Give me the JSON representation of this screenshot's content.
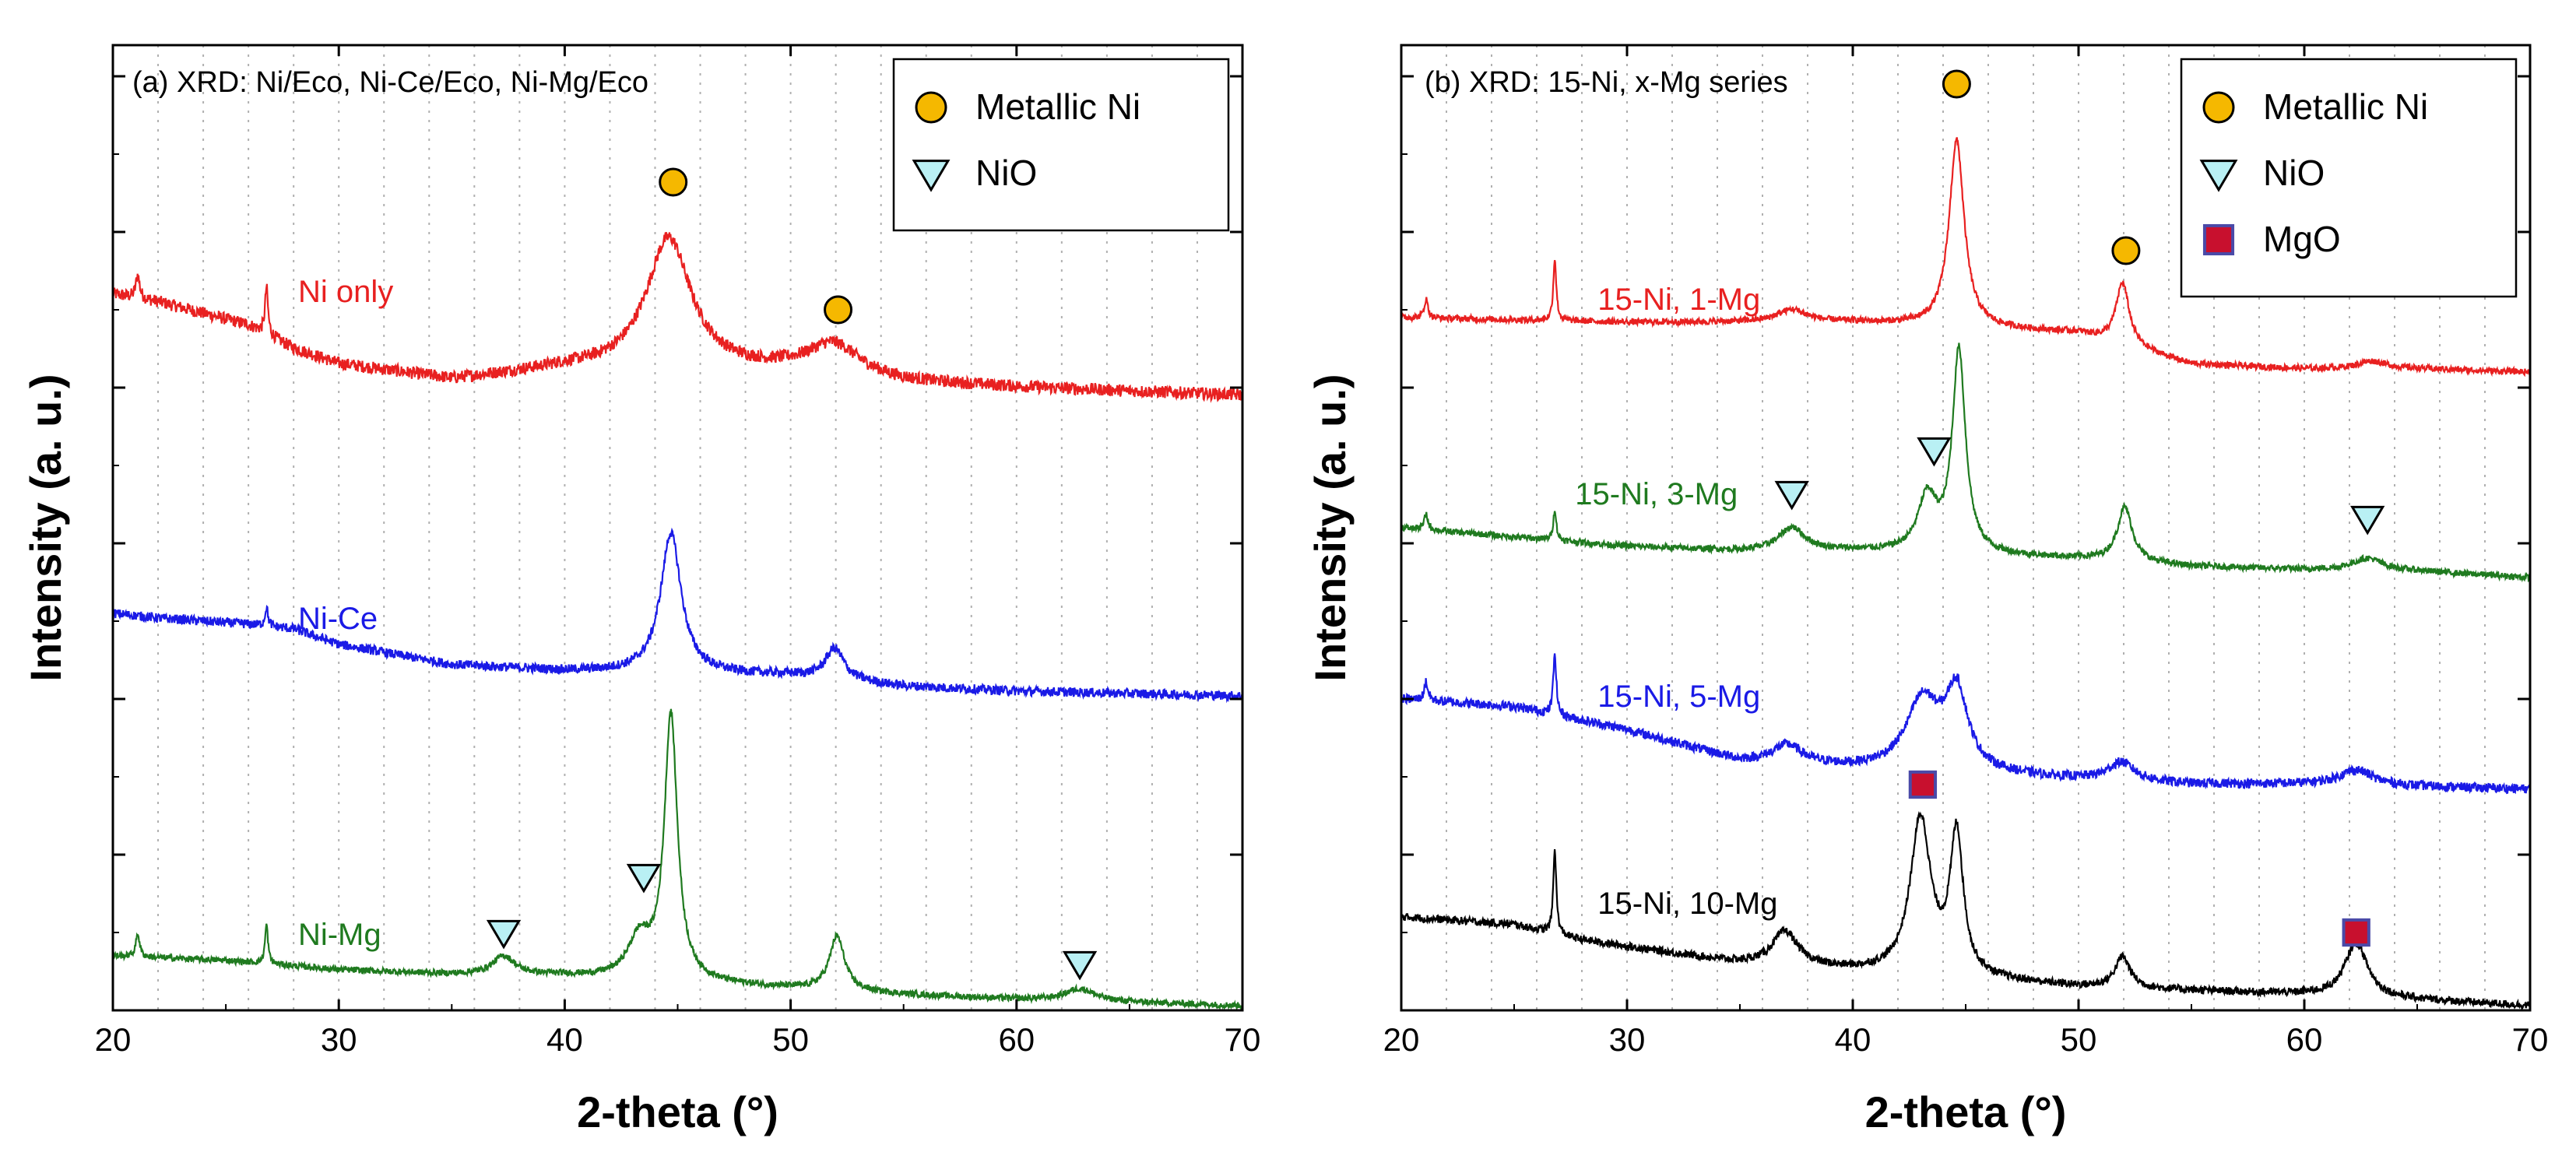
{
  "chart_data": [
    {
      "type": "line",
      "title": "(a) XRD: Ni/Eco, Ni-Ce/Eco, Ni-Mg/Eco",
      "xlabel": "2-theta (°)",
      "ylabel": "Intensity (a. u.)",
      "xlim": [
        20,
        70
      ],
      "xticks": [
        20,
        30,
        40,
        50,
        60,
        70
      ],
      "xtick_labels": [
        "20",
        "30",
        "40",
        "50",
        "60",
        "70"
      ],
      "ylim": [
        0,
        6.2
      ],
      "yticks": [
        1,
        2,
        3,
        4,
        5,
        6
      ],
      "grid": "vertical dotted every 2°",
      "legend_position": "top-right",
      "legend": [
        {
          "label": "Metallic Ni",
          "marker": "circle",
          "color": "#f5b800"
        },
        {
          "label": "NiO",
          "marker": "triangle-down",
          "color": "#b9f0f4"
        }
      ],
      "series": [
        {
          "name": "Ni only",
          "color": "#e82020",
          "label_x": 28.2,
          "label_y": 4.55,
          "baseline": [
            [
              20,
              4.6
            ],
            [
              22,
              4.55
            ],
            [
              26,
              4.4
            ],
            [
              28,
              4.25
            ],
            [
              30,
              4.15
            ],
            [
              35,
              4.05
            ],
            [
              40,
              4.12
            ],
            [
              50,
              4.1
            ],
            [
              55,
              4.03
            ],
            [
              60,
              4.0
            ],
            [
              70,
              3.95
            ]
          ],
          "peaks": [
            {
              "x": 21.1,
              "h": 0.15,
              "w": 0.1
            },
            {
              "x": 26.8,
              "h": 0.3,
              "w": 0.08
            },
            {
              "x": 44.6,
              "h": 0.85,
              "w": 1.2
            },
            {
              "x": 51.9,
              "h": 0.2,
              "w": 1.4
            }
          ],
          "noise": 0.04
        },
        {
          "name": "Ni-Ce",
          "color": "#1a1ae6",
          "label_x": 28.2,
          "label_y": 2.45,
          "baseline": [
            [
              20,
              2.55
            ],
            [
              22,
              2.52
            ],
            [
              26,
              2.48
            ],
            [
              28,
              2.45
            ],
            [
              30,
              2.35
            ],
            [
              35,
              2.22
            ],
            [
              40,
              2.18
            ],
            [
              50,
              2.15
            ],
            [
              55,
              2.08
            ],
            [
              60,
              2.05
            ],
            [
              70,
              2.02
            ]
          ],
          "peaks": [
            {
              "x": 26.8,
              "h": 0.12,
              "w": 0.08
            },
            {
              "x": 44.7,
              "h": 0.9,
              "w": 0.55
            },
            {
              "x": 51.95,
              "h": 0.2,
              "w": 0.5
            }
          ],
          "noise": 0.03
        },
        {
          "name": "Ni-Mg",
          "color": "#1f7a1f",
          "label_x": 28.2,
          "label_y": 0.42,
          "baseline": [
            [
              20,
              0.35
            ],
            [
              25,
              0.32
            ],
            [
              30,
              0.26
            ],
            [
              35,
              0.23
            ],
            [
              40,
              0.22
            ],
            [
              50,
              0.14
            ],
            [
              55,
              0.1
            ],
            [
              60,
              0.07
            ],
            [
              70,
              0.03
            ]
          ],
          "peaks": [
            {
              "x": 21.1,
              "h": 0.15,
              "w": 0.1
            },
            {
              "x": 26.8,
              "h": 0.25,
              "w": 0.08
            },
            {
              "x": 37.3,
              "h": 0.12,
              "w": 0.6
            },
            {
              "x": 43.3,
              "h": 0.25,
              "w": 0.6
            },
            {
              "x": 44.7,
              "h": 1.7,
              "w": 0.35
            },
            {
              "x": 52.05,
              "h": 0.35,
              "w": 0.4
            },
            {
              "x": 62.8,
              "h": 0.08,
              "w": 0.8
            }
          ],
          "noise": 0.02
        }
      ],
      "annotations": [
        {
          "marker": "circle",
          "x": 44.8,
          "y": 5.32
        },
        {
          "marker": "circle",
          "x": 52.1,
          "y": 4.5
        },
        {
          "marker": "triangle-down",
          "x": 37.3,
          "y": 0.5
        },
        {
          "marker": "triangle-down",
          "x": 43.5,
          "y": 0.86
        },
        {
          "marker": "triangle-down",
          "x": 62.8,
          "y": 0.3
        }
      ]
    },
    {
      "type": "line",
      "title": "(b) XRD: 15-Ni, x-Mg series",
      "xlabel": "2-theta (°)",
      "ylabel": "Intensity (a. u.)",
      "xlim": [
        20,
        70
      ],
      "xticks": [
        20,
        30,
        40,
        50,
        60,
        70
      ],
      "xtick_labels": [
        "20",
        "30",
        "40",
        "50",
        "60",
        "70"
      ],
      "ylim": [
        0,
        6.2
      ],
      "yticks": [
        1,
        2,
        3,
        4,
        5,
        6
      ],
      "grid": "vertical dotted every 2°",
      "legend_position": "top-right",
      "legend": [
        {
          "label": "Metallic Ni",
          "marker": "circle",
          "color": "#f5b800"
        },
        {
          "label": "NiO",
          "marker": "triangle-down",
          "color": "#b9f0f4"
        },
        {
          "label": "MgO",
          "marker": "square",
          "color": "#c8102e"
        }
      ],
      "series": [
        {
          "name": "15-Ni, 1-Mg",
          "color": "#e82020",
          "label_x": 28.7,
          "label_y": 4.5,
          "baseline": [
            [
              20,
              4.45
            ],
            [
              30,
              4.42
            ],
            [
              35,
              4.42
            ],
            [
              40,
              4.42
            ],
            [
              50,
              4.35
            ],
            [
              55,
              4.15
            ],
            [
              60,
              4.12
            ],
            [
              65,
              4.12
            ],
            [
              70,
              4.1
            ]
          ],
          "peaks": [
            {
              "x": 21.1,
              "h": 0.12,
              "w": 0.1
            },
            {
              "x": 26.8,
              "h": 0.4,
              "w": 0.08
            },
            {
              "x": 37.3,
              "h": 0.08,
              "w": 0.8
            },
            {
              "x": 44.6,
              "h": 1.2,
              "w": 0.4
            },
            {
              "x": 51.95,
              "h": 0.4,
              "w": 0.35
            },
            {
              "x": 63.0,
              "h": 0.05,
              "w": 0.8
            }
          ],
          "noise": 0.02
        },
        {
          "name": "15-Ni, 3-Mg",
          "color": "#1f7a1f",
          "label_x": 27.7,
          "label_y": 3.25,
          "baseline": [
            [
              20,
              3.1
            ],
            [
              30,
              2.98
            ],
            [
              35,
              2.95
            ],
            [
              40,
              2.95
            ],
            [
              50,
              2.9
            ],
            [
              55,
              2.85
            ],
            [
              60,
              2.83
            ],
            [
              65,
              2.82
            ],
            [
              70,
              2.78
            ]
          ],
          "peaks": [
            {
              "x": 21.1,
              "h": 0.1,
              "w": 0.1
            },
            {
              "x": 26.8,
              "h": 0.2,
              "w": 0.08
            },
            {
              "x": 37.3,
              "h": 0.15,
              "w": 0.7
            },
            {
              "x": 43.3,
              "h": 0.35,
              "w": 0.5
            },
            {
              "x": 44.7,
              "h": 1.3,
              "w": 0.35
            },
            {
              "x": 52.05,
              "h": 0.35,
              "w": 0.4
            },
            {
              "x": 62.8,
              "h": 0.08,
              "w": 0.8
            }
          ],
          "noise": 0.02
        },
        {
          "name": "15-Ni, 5-Mg",
          "color": "#1a1ae6",
          "label_x": 28.7,
          "label_y": 1.95,
          "baseline": [
            [
              20,
              2.0
            ],
            [
              25,
              1.95
            ],
            [
              30,
              1.8
            ],
            [
              35,
              1.6
            ],
            [
              40,
              1.55
            ],
            [
              50,
              1.48
            ],
            [
              55,
              1.45
            ],
            [
              60,
              1.45
            ],
            [
              70,
              1.42
            ]
          ],
          "peaks": [
            {
              "x": 21.1,
              "h": 0.12,
              "w": 0.1
            },
            {
              "x": 26.8,
              "h": 0.4,
              "w": 0.08
            },
            {
              "x": 37.1,
              "h": 0.12,
              "w": 0.8
            },
            {
              "x": 43.1,
              "h": 0.45,
              "w": 0.9
            },
            {
              "x": 44.6,
              "h": 0.5,
              "w": 0.6
            },
            {
              "x": 51.9,
              "h": 0.12,
              "w": 0.7
            },
            {
              "x": 62.3,
              "h": 0.1,
              "w": 0.9
            }
          ],
          "noise": 0.03
        },
        {
          "name": "15-Ni, 10-Mg",
          "color": "#000000",
          "label_x": 28.7,
          "label_y": 0.62,
          "baseline": [
            [
              20,
              0.6
            ],
            [
              25,
              0.55
            ],
            [
              28,
              0.45
            ],
            [
              35,
              0.3
            ],
            [
              40,
              0.25
            ],
            [
              50,
              0.15
            ],
            [
              60,
              0.1
            ],
            [
              70,
              0.03
            ]
          ],
          "peaks": [
            {
              "x": 26.8,
              "h": 0.55,
              "w": 0.08
            },
            {
              "x": 37.0,
              "h": 0.22,
              "w": 0.7
            },
            {
              "x": 43.0,
              "h": 1.0,
              "w": 0.55
            },
            {
              "x": 44.6,
              "h": 0.9,
              "w": 0.35
            },
            {
              "x": 51.95,
              "h": 0.2,
              "w": 0.4
            },
            {
              "x": 62.3,
              "h": 0.35,
              "w": 0.6
            }
          ],
          "noise": 0.025
        }
      ],
      "annotations": [
        {
          "marker": "circle",
          "x": 44.6,
          "y": 5.95
        },
        {
          "marker": "circle",
          "x": 52.1,
          "y": 4.88
        },
        {
          "marker": "triangle-down",
          "x": 37.3,
          "y": 3.32
        },
        {
          "marker": "triangle-down",
          "x": 43.6,
          "y": 3.6
        },
        {
          "marker": "triangle-down",
          "x": 62.8,
          "y": 3.16
        },
        {
          "marker": "square",
          "x": 43.1,
          "y": 1.45
        },
        {
          "marker": "square",
          "x": 62.3,
          "y": 0.5
        }
      ]
    }
  ]
}
